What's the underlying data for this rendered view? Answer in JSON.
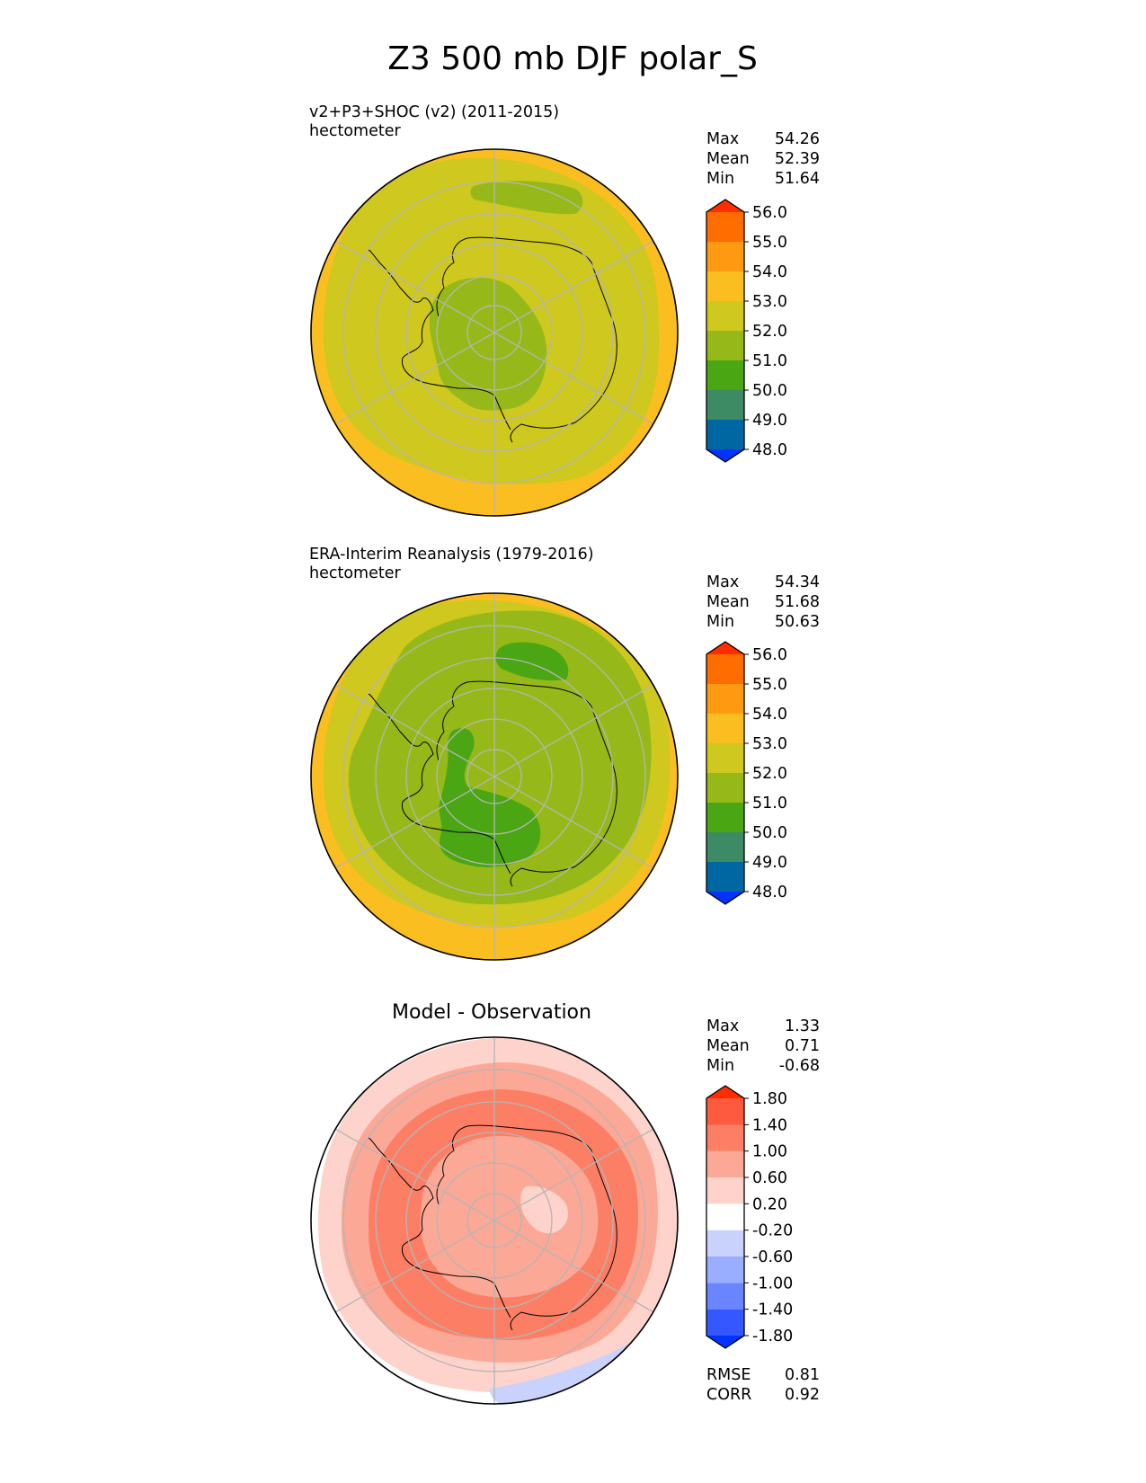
{
  "chart_data": {
    "type": "polar-contour-map",
    "title": "Z3 500 mb DJF polar_S",
    "panels": [
      {
        "id": "test",
        "title_line1": "v2+P3+SHOC (v2) (2011-2015)",
        "title_line2": "hectometer",
        "stats": {
          "max_label": "Max",
          "max": "54.26",
          "mean_label": "Mean",
          "mean": "52.39",
          "min_label": "Min",
          "min": "51.64"
        },
        "colorbar": {
          "ticks": [
            "48.0",
            "49.0",
            "50.0",
            "51.0",
            "52.0",
            "53.0",
            "54.0",
            "55.0",
            "56.0"
          ],
          "colors": [
            "#0433ff",
            "#0067a3",
            "#3c8b64",
            "#4aa613",
            "#96b919",
            "#cec81f",
            "#fbbe21",
            "#fe9a11",
            "#ff6d00",
            "#ff2d00"
          ]
        },
        "regions": [
          {
            "level": "53-54",
            "color": "#fbbe21"
          },
          {
            "level": "52-53",
            "color": "#cec81f"
          },
          {
            "level": "51-52",
            "color": "#96b919"
          }
        ]
      },
      {
        "id": "reference",
        "title_line1": "ERA-Interim Reanalysis (1979-2016)",
        "title_line2": "hectometer",
        "stats": {
          "max_label": "Max",
          "max": "54.34",
          "mean_label": "Mean",
          "mean": "51.68",
          "min_label": "Min",
          "min": "50.63"
        },
        "colorbar": {
          "ticks": [
            "48.0",
            "49.0",
            "50.0",
            "51.0",
            "52.0",
            "53.0",
            "54.0",
            "55.0",
            "56.0"
          ],
          "colors": [
            "#0433ff",
            "#0067a3",
            "#3c8b64",
            "#4aa613",
            "#96b919",
            "#cec81f",
            "#fbbe21",
            "#fe9a11",
            "#ff6d00",
            "#ff2d00"
          ]
        },
        "regions": [
          {
            "level": "53-54",
            "color": "#fbbe21"
          },
          {
            "level": "52-53",
            "color": "#cec81f"
          },
          {
            "level": "51-52",
            "color": "#96b919"
          },
          {
            "level": "50-51",
            "color": "#4aa613"
          }
        ]
      },
      {
        "id": "diff",
        "title_line1": "Model - Observation",
        "stats": {
          "max_label": "Max",
          "max": "1.33",
          "mean_label": "Mean",
          "mean": "0.71",
          "min_label": "Min",
          "min": "-0.68"
        },
        "metrics": {
          "rmse_label": "RMSE",
          "rmse": "0.81",
          "corr_label": "CORR",
          "corr": "0.92"
        },
        "colorbar": {
          "ticks": [
            "-1.80",
            "-1.40",
            "-1.00",
            "-0.60",
            "-0.20",
            "0.20",
            "0.60",
            "1.00",
            "1.40",
            "1.80"
          ],
          "colors": [
            "#0433ff",
            "#3457ff",
            "#6a85ff",
            "#9aaeff",
            "#c8d2fc",
            "#ffffff",
            "#fdd3cb",
            "#fca896",
            "#fc7f65",
            "#fd5a3f",
            "#ff2d00"
          ]
        },
        "regions": [
          {
            "level": "0.2-0.6",
            "color": "#fdd3cb"
          },
          {
            "level": "0.6-1.0",
            "color": "#fca896"
          },
          {
            "level": "1.0-1.4",
            "color": "#fc7f65"
          },
          {
            "level": "-0.6--0.2",
            "color": "#c8d2fc"
          }
        ]
      }
    ]
  }
}
